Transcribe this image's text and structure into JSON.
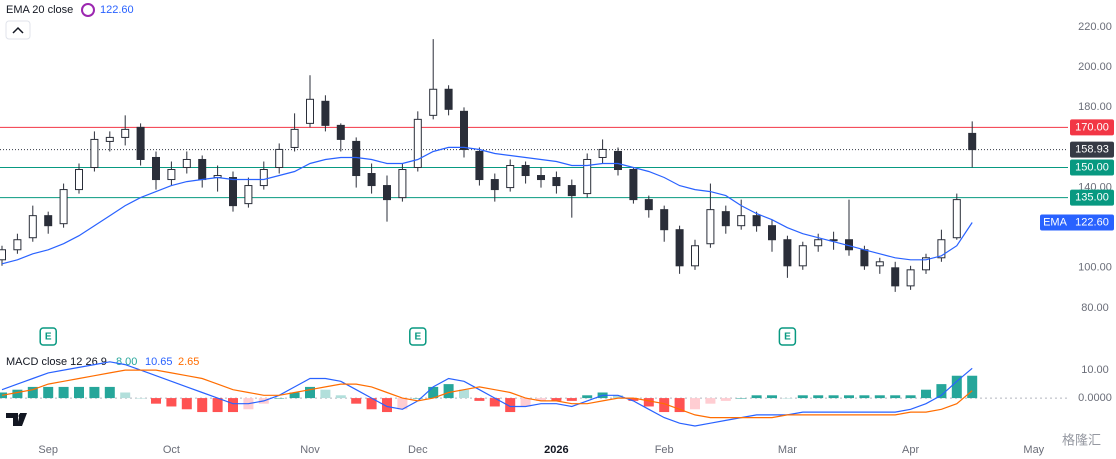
{
  "chart_data": {
    "type": "candlestick",
    "indicator_legend": {
      "name": "EMA 20 close",
      "value": "122.60"
    },
    "categories": [
      null,
      null,
      null,
      "Sep",
      null,
      null,
      null,
      null,
      null,
      null,
      null,
      "Oct",
      null,
      null,
      null,
      null,
      null,
      null,
      null,
      null,
      "Nov",
      null,
      null,
      null,
      null,
      null,
      null,
      "Dec",
      null,
      null,
      null,
      null,
      null,
      null,
      null,
      null,
      "2026",
      null,
      null,
      null,
      null,
      null,
      null,
      "Feb",
      null,
      null,
      null,
      null,
      null,
      null,
      null,
      "Mar",
      null,
      null,
      null,
      null,
      null,
      null,
      null,
      "Apr",
      null,
      null,
      null,
      null,
      null,
      null,
      null,
      "May"
    ],
    "open": [
      104,
      109,
      115,
      126,
      122,
      139,
      150,
      163,
      165,
      170,
      155,
      144,
      150,
      154,
      145,
      145,
      132,
      141,
      150,
      160,
      172,
      183,
      171,
      163,
      147,
      141,
      135,
      150,
      176,
      189,
      178,
      158,
      144,
      140,
      151,
      146,
      145,
      141,
      137,
      155,
      158,
      149,
      134,
      129,
      119,
      101,
      112,
      128,
      121,
      126,
      121,
      114,
      101,
      111,
      114,
      114,
      109,
      101,
      100,
      91,
      99,
      105,
      115,
      167,
      null,
      null,
      null,
      null
    ],
    "high": [
      111,
      117,
      131,
      128,
      142,
      152,
      168,
      168,
      176,
      172,
      158,
      153,
      158,
      156,
      151,
      148,
      145,
      153,
      162,
      177,
      196,
      186,
      172,
      165,
      152,
      146,
      152,
      178,
      214,
      191,
      180,
      160,
      147,
      154,
      153,
      150,
      148,
      144,
      157,
      164,
      160,
      150,
      136,
      131,
      121,
      114,
      142,
      131,
      134,
      128,
      124,
      116,
      113,
      117,
      118,
      134,
      111,
      105,
      103,
      101,
      107,
      119,
      137,
      173,
      null,
      null,
      null,
      null
    ],
    "low": [
      101,
      107,
      113,
      117,
      120,
      137,
      148,
      158,
      161,
      151,
      139,
      141,
      147,
      140,
      138,
      128,
      130,
      139,
      147,
      158,
      170,
      168,
      158,
      140,
      137,
      123,
      133,
      148,
      174,
      176,
      155,
      141,
      133,
      138,
      142,
      140,
      137,
      125,
      135,
      152,
      146,
      132,
      125,
      113,
      97,
      99,
      110,
      117,
      119,
      118,
      108,
      95,
      99,
      108,
      109,
      106,
      99,
      97,
      88,
      89,
      97,
      103,
      114,
      150,
      null,
      null,
      null,
      null
    ],
    "close": [
      109,
      114,
      126,
      121,
      139,
      149,
      164,
      165,
      169,
      154,
      144,
      149,
      154,
      144,
      146,
      131,
      141,
      149,
      159,
      169,
      184,
      171,
      164,
      146,
      141,
      134,
      149,
      174,
      189,
      179,
      159,
      144,
      139,
      151,
      146,
      144,
      141,
      136,
      154,
      159,
      149,
      134,
      129,
      119,
      101,
      111,
      129,
      121,
      126,
      121,
      114,
      101,
      111,
      114,
      114,
      109,
      101,
      103,
      91,
      99,
      105,
      114,
      134,
      158.93,
      null,
      null,
      null,
      null
    ],
    "ylim": [
      69,
      233.5
    ],
    "yticks": [
      {
        "value": 80,
        "label": "80.00"
      },
      {
        "value": 100,
        "label": "100.00"
      },
      {
        "value": 120,
        "label": "120.00"
      },
      {
        "value": 140,
        "label": "140.00"
      },
      {
        "value": 160,
        "label": "160.00"
      },
      {
        "value": 180,
        "label": "180.00"
      },
      {
        "value": 200,
        "label": "200.00"
      },
      {
        "value": 220,
        "label": "220.00"
      }
    ],
    "levels": [
      {
        "value": 170,
        "label": "170.00",
        "color": "#f23645"
      },
      {
        "value": 158.93,
        "label": "158.93",
        "color": "#363a45"
      },
      {
        "value": 150,
        "label": "150.00",
        "color": "#089981"
      },
      {
        "value": 135,
        "label": "135.00",
        "color": "#089981"
      }
    ],
    "ema": {
      "name": "EMA",
      "color": "#2962ff",
      "last_label": "122.60",
      "values": [
        102,
        104,
        107,
        109,
        112,
        116,
        121,
        126,
        131,
        135,
        138,
        141,
        143,
        144,
        145,
        144,
        144,
        144,
        146,
        148,
        152,
        154,
        155,
        155,
        154,
        152,
        152,
        154,
        158,
        160,
        160,
        159,
        157,
        156,
        155,
        154,
        153,
        151,
        151,
        152,
        152,
        150,
        148,
        145,
        141,
        139,
        138,
        136,
        131,
        127,
        124,
        120,
        117,
        115,
        113,
        111,
        109,
        107,
        105,
        104,
        104,
        106,
        111,
        122.6,
        null,
        null,
        null,
        null
      ]
    },
    "earnings": [
      {
        "index": 3,
        "label": "E"
      },
      {
        "index": 27,
        "label": "E"
      },
      {
        "index": 51,
        "label": "E"
      }
    ],
    "macd": {
      "title": "MACD close 12 26 9",
      "hist_label": "8.00",
      "macd_label": "10.65",
      "signal_label": "2.65",
      "macd_color": "#2962ff",
      "signal_color": "#ff6d00",
      "ylim": [
        -15,
        19
      ],
      "yticks": [
        {
          "value": 10,
          "label": "10.00"
        },
        {
          "value": 0,
          "label": "0.0000"
        }
      ],
      "histogram": [
        2,
        3,
        4,
        4,
        4,
        4,
        4,
        4,
        2,
        0,
        -2,
        -3,
        -4,
        -5,
        -5,
        -5,
        -4,
        -2,
        0,
        2,
        4,
        3,
        1,
        -2,
        -4,
        -5,
        -4,
        0,
        4,
        5,
        3,
        -1,
        -3,
        -5,
        -3,
        -1,
        -1,
        -1,
        1,
        2,
        1,
        -1,
        -3,
        -5,
        -5,
        -4,
        -2,
        -1,
        0,
        1,
        1,
        0,
        1,
        1,
        1,
        1,
        1,
        1,
        1,
        1,
        3,
        5,
        8,
        8,
        null,
        null,
        null,
        null
      ],
      "macd": [
        3,
        5,
        7,
        9,
        10,
        11,
        12,
        13,
        12,
        10,
        8,
        6,
        4,
        2,
        0,
        -2,
        -2,
        -1,
        1,
        4,
        7,
        7,
        6,
        3,
        0,
        -3,
        -4,
        -1,
        4,
        7,
        6,
        3,
        0,
        -3,
        -3,
        -2,
        -2,
        -3,
        -1,
        1,
        1,
        -1,
        -4,
        -7,
        -9,
        -10,
        -9,
        -8,
        -7,
        -6,
        -6,
        -6,
        -5,
        -5,
        -5,
        -5,
        -5,
        -5,
        -5,
        -4,
        -2,
        1,
        6,
        10.65,
        null,
        null,
        null,
        null
      ],
      "signal": [
        1,
        2,
        3,
        5,
        6,
        7,
        8,
        9,
        10,
        10,
        10,
        9,
        8,
        7,
        5,
        3,
        2,
        1,
        1,
        2,
        3,
        4,
        5,
        5,
        4,
        2,
        0,
        -1,
        0,
        2,
        3,
        4,
        3,
        2,
        0,
        -1,
        -1,
        -2,
        -2,
        -1,
        0,
        0,
        -1,
        -2,
        -4,
        -6,
        -7,
        -7,
        -7,
        -7,
        -7,
        -6,
        -6,
        -6,
        -6,
        -6,
        -6,
        -6,
        -6,
        -5,
        -5,
        -4,
        -2,
        2.65,
        null,
        null,
        null,
        null
      ]
    },
    "watermark": "格隆汇"
  }
}
